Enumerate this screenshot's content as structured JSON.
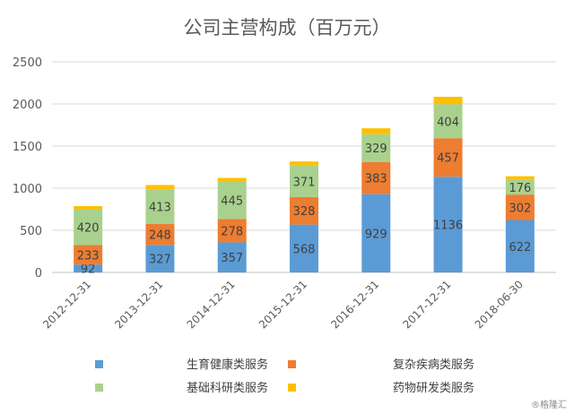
{
  "chart_data": {
    "type": "bar",
    "stacked": true,
    "title": "公司主营构成（百万元）",
    "categories": [
      "2012-12-31",
      "2013-12-31",
      "2014-12-31",
      "2015-12-31",
      "2016-12-31",
      "2017-12-31",
      "2018-06-30"
    ],
    "series": [
      {
        "name": "生育健康类服务",
        "color": "#5B9BD5",
        "values": [
          92,
          327,
          357,
          568,
          929,
          1136,
          622
        ],
        "labels": [
          "92",
          "327",
          "357",
          "568",
          "929",
          "1136",
          "622"
        ]
      },
      {
        "name": "复杂疾病类服务",
        "color": "#ED7D31",
        "values": [
          233,
          248,
          278,
          328,
          383,
          457,
          302
        ],
        "labels": [
          "233",
          "248",
          "278",
          "328",
          "383",
          "457",
          "302"
        ]
      },
      {
        "name": "基础科研类服务",
        "color": "#A9D18E",
        "values": [
          420,
          413,
          445,
          371,
          329,
          404,
          176
        ],
        "labels": [
          "420",
          "413",
          "445",
          "371",
          "329",
          "404",
          "176"
        ]
      },
      {
        "name": "药物研发类服务",
        "color": "#FFC000",
        "values": [
          42,
          50,
          42,
          50,
          70,
          88,
          42
        ],
        "labels": []
      }
    ],
    "ylim": [
      0,
      2500
    ],
    "yticks": [
      "0",
      "500",
      "1000",
      "1500",
      "2000",
      "2500"
    ],
    "grid": true,
    "legend_position": "bottom"
  },
  "watermark": "®格隆汇"
}
